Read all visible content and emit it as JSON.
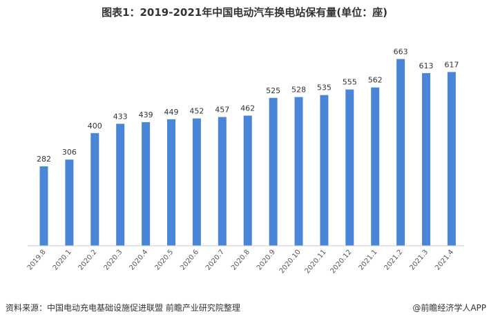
{
  "chart_data": {
    "type": "bar",
    "title": "图表1：2019-2021年中国电动汽车换电站保有量(单位：座)",
    "xlabel": "",
    "ylabel": "",
    "categories": [
      "2019.8",
      "2020.1",
      "2020.2",
      "2020.3",
      "2020.4",
      "2020.5",
      "2020.6",
      "2020.7",
      "2020.8",
      "2020.9",
      "2020.10",
      "2020.11",
      "2020.12",
      "2021.1",
      "2021.2",
      "2021.3",
      "2021.4"
    ],
    "values": [
      282,
      306,
      400,
      433,
      439,
      449,
      452,
      457,
      462,
      525,
      528,
      535,
      555,
      562,
      663,
      613,
      617
    ],
    "ylim": [
      0,
      750
    ],
    "grid": false,
    "bar_color": "#4A86D8"
  },
  "footer": {
    "source": "资料来源：中国电动充电基础设施促进联盟 前瞻产业研究院整理",
    "brand": "@前瞻经济学人APP"
  }
}
